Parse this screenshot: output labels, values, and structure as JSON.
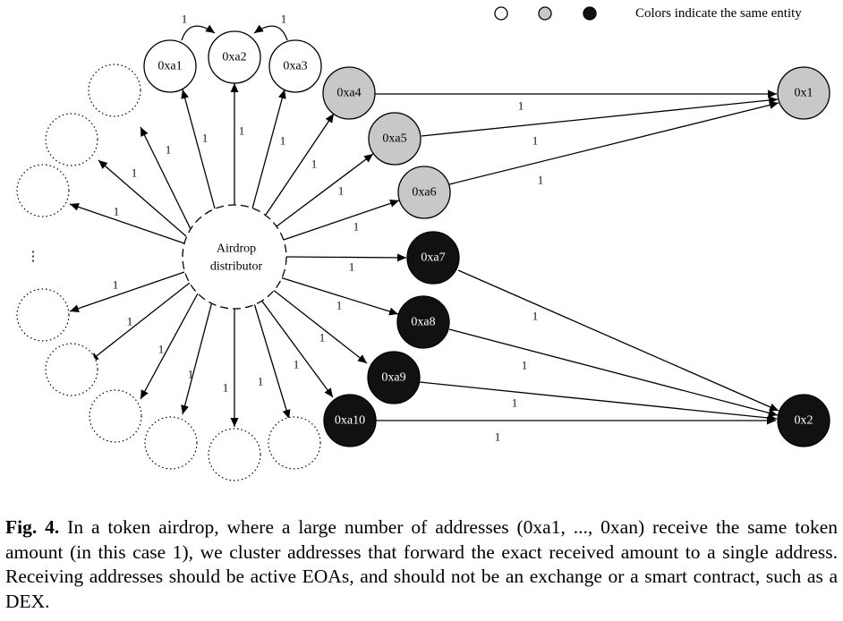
{
  "legend": {
    "text": "Colors indicate the same entity",
    "colors": [
      "#ffffff",
      "#c8c8c8",
      "#111111"
    ]
  },
  "distributor": {
    "line1": "Airdrop",
    "line2": "distributor"
  },
  "nodes": {
    "xa1": "0xa1",
    "xa2": "0xa2",
    "xa3": "0xa3",
    "xa4": "0xa4",
    "xa5": "0xa5",
    "xa6": "0xa6",
    "xa7": "0xa7",
    "xa8": "0xa8",
    "xa9": "0xa9",
    "xa10": "0xa10",
    "x1": "0x1",
    "x2": "0x2"
  },
  "ellipsis": "⋮",
  "edge_value": "1",
  "caption": {
    "label": "Fig. 4.",
    "text": "In a token airdrop, where a large number of addresses (0xa1, ..., 0xan) receive the same token amount (in this case 1), we cluster addresses that forward the exact received amount to a single address. Receiving addresses should be active EOAs, and should not be an exchange or a smart contract, such as a DEX."
  }
}
